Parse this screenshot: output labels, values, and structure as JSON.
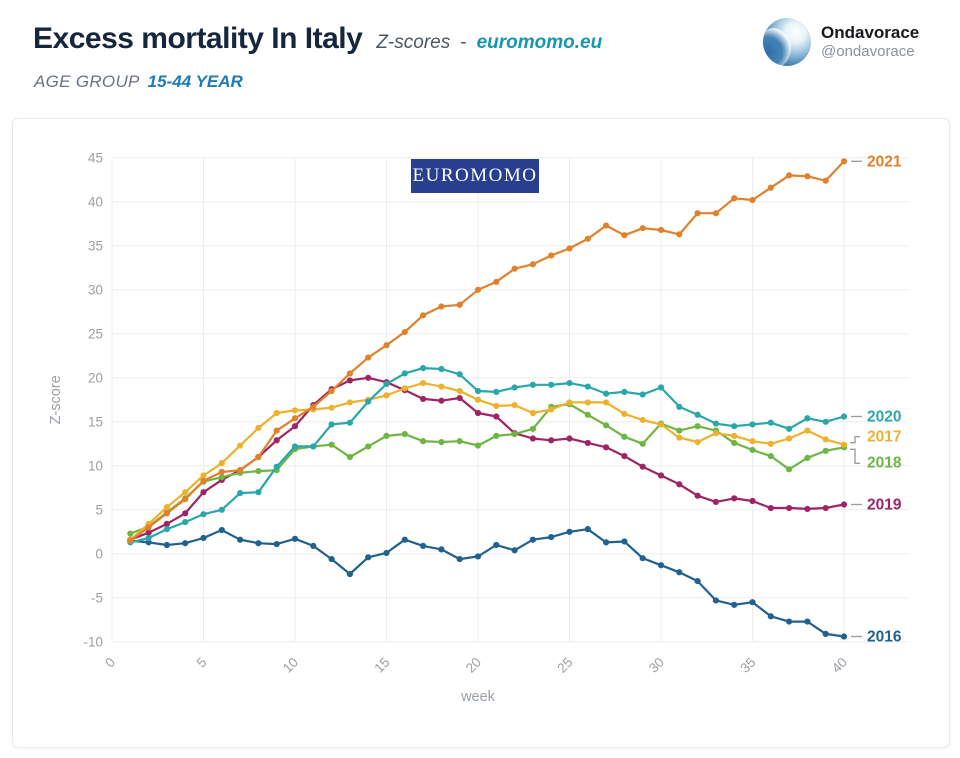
{
  "header": {
    "title": "Excess mortality In Italy",
    "subtitle": "Z-scores",
    "separator": "-",
    "source_link": "euromomo.eu",
    "age_group_label": "AGE GROUP",
    "age_group_value": "15-44 YEAR",
    "account_name": "Ondavorace",
    "account_handle": "@ondavorace"
  },
  "badge": {
    "text": "EUROMOMO"
  },
  "chart_data": {
    "type": "line",
    "title": "",
    "xlabel": "week",
    "ylabel": "Z-score",
    "xlim": [
      0,
      40
    ],
    "ylim": [
      -10,
      45
    ],
    "x_ticks": [
      0,
      5,
      10,
      15,
      20,
      25,
      30,
      35,
      40
    ],
    "y_ticks": [
      45,
      40,
      35,
      30,
      25,
      20,
      15,
      10,
      5,
      0,
      -5,
      -10
    ],
    "grid": true,
    "legend_position": "end-of-line-labels",
    "grid_color": "#ededed",
    "tick_color": "#9aa0a6",
    "x": [
      1,
      2,
      3,
      4,
      5,
      6,
      7,
      8,
      9,
      10,
      11,
      12,
      13,
      14,
      15,
      16,
      17,
      18,
      19,
      20,
      21,
      22,
      23,
      24,
      25,
      26,
      27,
      28,
      29,
      30,
      31,
      32,
      33,
      34,
      35,
      36,
      37,
      38,
      39,
      40
    ],
    "series": [
      {
        "name": "2021",
        "color": "#e0812b",
        "label_style": "dash",
        "values": [
          1.5,
          3.0,
          4.6,
          6.2,
          8.3,
          9.3,
          9.5,
          11.0,
          14.0,
          15.4,
          16.7,
          18.5,
          20.5,
          22.3,
          23.7,
          25.2,
          27.1,
          28.1,
          28.3,
          30.0,
          30.9,
          32.4,
          32.9,
          33.9,
          34.7,
          35.8,
          37.3,
          36.2,
          37.0,
          36.8,
          36.3,
          38.7,
          38.7,
          40.4,
          40.2,
          41.6,
          43.0,
          42.9,
          42.4,
          44.6
        ]
      },
      {
        "name": "2020",
        "color": "#2aa7a9",
        "label_style": "dash",
        "values": [
          1.3,
          1.8,
          2.8,
          3.6,
          4.5,
          5.0,
          6.9,
          7.0,
          9.9,
          12.2,
          12.2,
          14.7,
          14.9,
          17.3,
          19.3,
          20.5,
          21.1,
          21.0,
          20.4,
          18.5,
          18.4,
          18.9,
          19.2,
          19.2,
          19.4,
          19.0,
          18.2,
          18.4,
          18.1,
          18.9,
          16.7,
          15.8,
          14.8,
          14.5,
          14.7,
          14.9,
          14.2,
          15.4,
          15.0,
          15.6
        ]
      },
      {
        "name": "2017",
        "color": "#ecb22d",
        "label_style": "bracket-up",
        "values": [
          1.6,
          3.4,
          5.3,
          7.0,
          8.9,
          10.3,
          12.3,
          14.3,
          16.0,
          16.3,
          16.4,
          16.6,
          17.2,
          17.5,
          18.0,
          18.8,
          19.4,
          19.0,
          18.5,
          17.5,
          16.8,
          16.9,
          16.0,
          16.4,
          17.2,
          17.2,
          17.2,
          15.9,
          15.2,
          14.7,
          13.2,
          12.7,
          13.7,
          13.4,
          12.8,
          12.5,
          13.1,
          14.0,
          13.0,
          12.4
        ]
      },
      {
        "name": "2018",
        "color": "#6fb544",
        "label_style": "bracket-down",
        "values": [
          2.3,
          3.1,
          4.7,
          6.3,
          8.2,
          8.7,
          9.2,
          9.4,
          9.5,
          11.9,
          12.2,
          12.4,
          11.0,
          12.2,
          13.4,
          13.6,
          12.8,
          12.7,
          12.8,
          12.3,
          13.4,
          13.6,
          14.2,
          16.7,
          17.0,
          15.8,
          14.6,
          13.3,
          12.5,
          14.8,
          14.0,
          14.5,
          14.0,
          12.6,
          11.8,
          11.1,
          9.6,
          10.9,
          11.7,
          12.1
        ]
      },
      {
        "name": "2019",
        "color": "#9e2564",
        "label_style": "dash",
        "values": [
          1.6,
          2.4,
          3.4,
          4.6,
          7.0,
          8.4,
          9.5,
          11.0,
          12.9,
          14.5,
          16.9,
          18.7,
          19.7,
          20.0,
          19.5,
          18.6,
          17.6,
          17.4,
          17.7,
          16.0,
          15.6,
          13.7,
          13.1,
          12.9,
          13.1,
          12.6,
          12.1,
          11.1,
          9.9,
          8.9,
          7.9,
          6.6,
          5.9,
          6.3,
          6.0,
          5.2,
          5.2,
          5.1,
          5.2,
          5.6
        ]
      },
      {
        "name": "2016",
        "color": "#20618d",
        "label_style": "dash",
        "values": [
          1.5,
          1.3,
          1.0,
          1.2,
          1.8,
          2.7,
          1.6,
          1.2,
          1.1,
          1.7,
          0.9,
          -0.6,
          -2.3,
          -0.4,
          0.1,
          1.6,
          0.9,
          0.5,
          -0.6,
          -0.3,
          1.0,
          0.4,
          1.6,
          1.9,
          2.5,
          2.8,
          1.3,
          1.4,
          -0.5,
          -1.3,
          -2.1,
          -3.1,
          -5.3,
          -5.8,
          -5.5,
          -7.1,
          -7.7,
          -7.7,
          -9.1,
          -9.4
        ]
      }
    ],
    "annotations": [
      {
        "text": "EUROMOMO",
        "style": "navy-badge"
      }
    ]
  }
}
